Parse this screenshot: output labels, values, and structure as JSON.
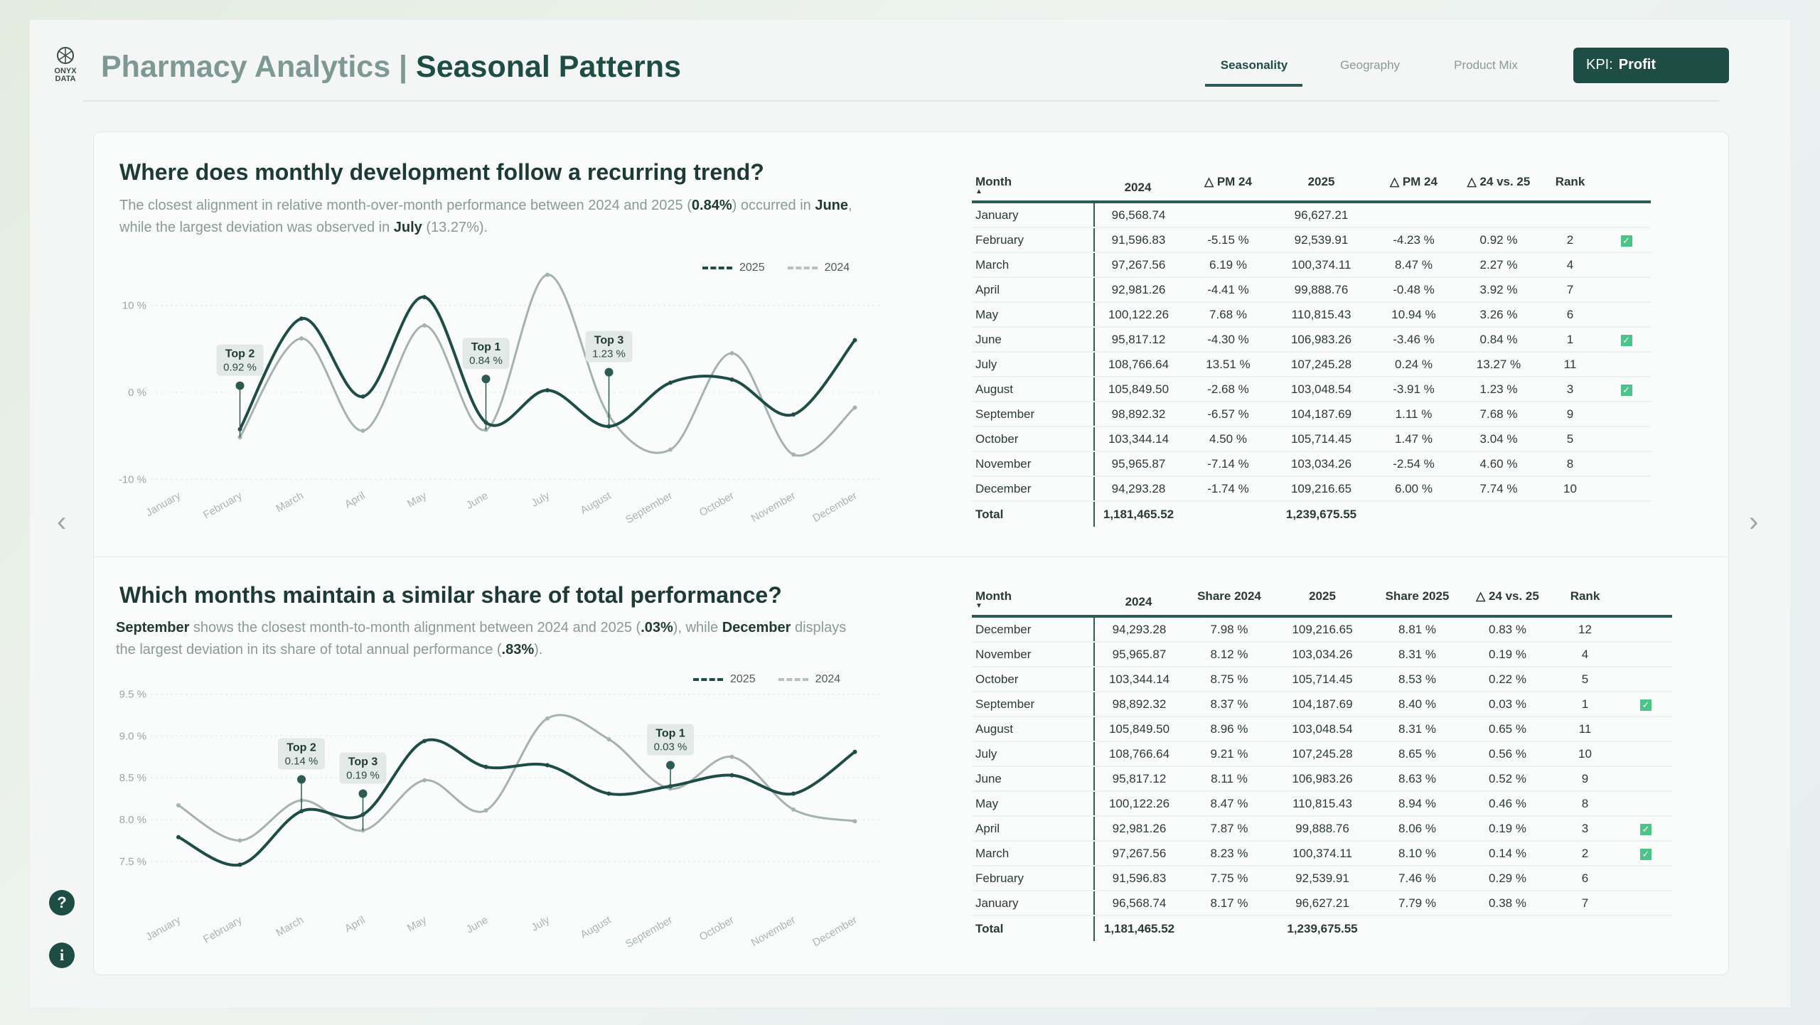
{
  "header": {
    "logo_text": "ONYX DATA",
    "title_light": "Pharmacy Analytics |",
    "title_bold": "Seasonal Patterns",
    "tabs": [
      {
        "label": "Seasonality",
        "active": true
      },
      {
        "label": "Geography"
      },
      {
        "label": "Product Mix"
      }
    ],
    "kpi_label": "KPI:",
    "kpi_value": "Profit"
  },
  "nav": {
    "prev": "‹",
    "next": "›",
    "help": "?",
    "info": "i"
  },
  "colors": {
    "series_2025": "#1e4d45",
    "series_2024": "#a4b3ae",
    "accent": "#1e4d45",
    "check": "#4cc489"
  },
  "section1": {
    "title": "Where does monthly development follow a recurring trend?",
    "desc": [
      "The closest alignment in relative month-over-month performance between 2024 and 2025 (",
      "0.84%",
      ") occurred in ",
      "June",
      ",",
      "while the largest deviation was observed in ",
      "July",
      " (13.27%)."
    ],
    "legend": [
      "2025",
      "2024"
    ],
    "table": {
      "headers": [
        "Month",
        "2024",
        "△ PM 24",
        "2025",
        "△ PM 24",
        "△ 24 vs. 25",
        "Rank",
        ""
      ],
      "sort": "▲",
      "rows": [
        [
          "January",
          "96,568.74",
          "",
          "96,627.21",
          "",
          "",
          "",
          false
        ],
        [
          "February",
          "91,596.83",
          "-5.15 %",
          "92,539.91",
          "-4.23 %",
          "0.92 %",
          "2",
          true
        ],
        [
          "March",
          "97,267.56",
          "6.19 %",
          "100,374.11",
          "8.47 %",
          "2.27 %",
          "4",
          false
        ],
        [
          "April",
          "92,981.26",
          "-4.41 %",
          "99,888.76",
          "-0.48 %",
          "3.92 %",
          "7",
          false
        ],
        [
          "May",
          "100,122.26",
          "7.68 %",
          "110,815.43",
          "10.94 %",
          "3.26 %",
          "6",
          false
        ],
        [
          "June",
          "95,817.12",
          "-4.30 %",
          "106,983.26",
          "-3.46 %",
          "0.84 %",
          "1",
          true
        ],
        [
          "July",
          "108,766.64",
          "13.51 %",
          "107,245.28",
          "0.24 %",
          "13.27 %",
          "11",
          false
        ],
        [
          "August",
          "105,849.50",
          "-2.68 %",
          "103,048.54",
          "-3.91 %",
          "1.23 %",
          "3",
          true
        ],
        [
          "September",
          "98,892.32",
          "-6.57 %",
          "104,187.69",
          "1.11 %",
          "7.68 %",
          "9",
          false
        ],
        [
          "October",
          "103,344.14",
          "4.50 %",
          "105,714.45",
          "1.47 %",
          "3.04 %",
          "5",
          false
        ],
        [
          "November",
          "95,965.87",
          "-7.14 %",
          "103,034.26",
          "-2.54 %",
          "4.60 %",
          "8",
          false
        ],
        [
          "December",
          "94,293.28",
          "-1.74 %",
          "109,216.65",
          "6.00 %",
          "7.74 %",
          "10",
          false
        ]
      ],
      "total": [
        "Total",
        "1,181,465.52",
        "",
        "1,239,675.55",
        "",
        "",
        "",
        ""
      ]
    }
  },
  "section2": {
    "title": "Which months maintain a similar share of total performance?",
    "desc": [
      "September",
      " shows the closest month-to-month alignment between 2024 and 2025 (",
      ".03%",
      "), while ",
      "December",
      " displays",
      "the largest deviation in its share of total annual performance (",
      ".83%",
      ")."
    ],
    "legend": [
      "2025",
      "2024"
    ],
    "table": {
      "headers": [
        "Month",
        "2024",
        "Share 2024",
        "2025",
        "Share 2025",
        "△ 24 vs. 25",
        "Rank",
        ""
      ],
      "sort": "▼",
      "rows": [
        [
          "December",
          "94,293.28",
          "7.98 %",
          "109,216.65",
          "8.81 %",
          "0.83 %",
          "12",
          false
        ],
        [
          "November",
          "95,965.87",
          "8.12 %",
          "103,034.26",
          "8.31 %",
          "0.19 %",
          "4",
          false
        ],
        [
          "October",
          "103,344.14",
          "8.75 %",
          "105,714.45",
          "8.53 %",
          "0.22 %",
          "5",
          false
        ],
        [
          "September",
          "98,892.32",
          "8.37 %",
          "104,187.69",
          "8.40 %",
          "0.03 %",
          "1",
          true
        ],
        [
          "August",
          "105,849.50",
          "8.96 %",
          "103,048.54",
          "8.31 %",
          "0.65 %",
          "11",
          false
        ],
        [
          "July",
          "108,766.64",
          "9.21 %",
          "107,245.28",
          "8.65 %",
          "0.56 %",
          "10",
          false
        ],
        [
          "June",
          "95,817.12",
          "8.11 %",
          "106,983.26",
          "8.63 %",
          "0.52 %",
          "9",
          false
        ],
        [
          "May",
          "100,122.26",
          "8.47 %",
          "110,815.43",
          "8.94 %",
          "0.46 %",
          "8",
          false
        ],
        [
          "April",
          "92,981.26",
          "7.87 %",
          "99,888.76",
          "8.06 %",
          "0.19 %",
          "3",
          true
        ],
        [
          "March",
          "97,267.56",
          "8.23 %",
          "100,374.11",
          "8.10 %",
          "0.14 %",
          "2",
          true
        ],
        [
          "February",
          "91,596.83",
          "7.75 %",
          "92,539.91",
          "7.46 %",
          "0.29 %",
          "6",
          false
        ],
        [
          "January",
          "96,568.74",
          "8.17 %",
          "96,627.21",
          "7.79 %",
          "0.38 %",
          "7",
          false
        ]
      ],
      "total": [
        "Total",
        "1,181,465.52",
        "",
        "1,239,675.55",
        "",
        "",
        "",
        ""
      ]
    }
  },
  "chart_data": [
    {
      "type": "line",
      "categories": [
        "January",
        "February",
        "March",
        "April",
        "May",
        "June",
        "July",
        "August",
        "September",
        "October",
        "November",
        "December"
      ],
      "yticks": [
        "10 %",
        "0 %",
        "-10 %"
      ],
      "ytick_values": [
        10,
        0,
        -10
      ],
      "ylim": [
        -10,
        13.5
      ],
      "grid": true,
      "legend": "top-right",
      "series": [
        {
          "name": "2025",
          "values": [
            null,
            -4.23,
            8.47,
            -0.48,
            10.94,
            -3.46,
            0.24,
            -3.91,
            1.11,
            1.47,
            -2.54,
            6.0
          ]
        },
        {
          "name": "2024",
          "values": [
            null,
            -5.15,
            6.19,
            -4.41,
            7.68,
            -4.3,
            13.51,
            -2.68,
            -6.57,
            4.5,
            -7.14,
            -1.74
          ]
        }
      ],
      "annotations": [
        {
          "month": "February",
          "label": "Top 2",
          "value": "0.92 %"
        },
        {
          "month": "June",
          "label": "Top 1",
          "value": "0.84 %"
        },
        {
          "month": "August",
          "label": "Top 3",
          "value": "1.23 %"
        }
      ]
    },
    {
      "type": "line",
      "categories": [
        "January",
        "February",
        "March",
        "April",
        "May",
        "June",
        "July",
        "August",
        "September",
        "October",
        "November",
        "December"
      ],
      "yticks": [
        "9.5 %",
        "9.0 %",
        "8.5 %",
        "8.0 %",
        "7.5 %"
      ],
      "ytick_values": [
        9.5,
        9.0,
        8.5,
        8.0,
        7.5
      ],
      "ylim": [
        7.5,
        9.5
      ],
      "grid": true,
      "legend": "top-right",
      "series": [
        {
          "name": "2025",
          "values": [
            7.79,
            7.46,
            8.1,
            8.06,
            8.94,
            8.63,
            8.65,
            8.31,
            8.4,
            8.53,
            8.31,
            8.81
          ]
        },
        {
          "name": "2024",
          "values": [
            8.17,
            7.75,
            8.23,
            7.87,
            8.47,
            8.11,
            9.21,
            8.96,
            8.37,
            8.75,
            8.12,
            7.98
          ]
        }
      ],
      "annotations": [
        {
          "month": "March",
          "label": "Top 2",
          "value": "0.14 %"
        },
        {
          "month": "April",
          "label": "Top 3",
          "value": "0.19 %"
        },
        {
          "month": "September",
          "label": "Top 1",
          "value": "0.03 %"
        }
      ]
    }
  ]
}
